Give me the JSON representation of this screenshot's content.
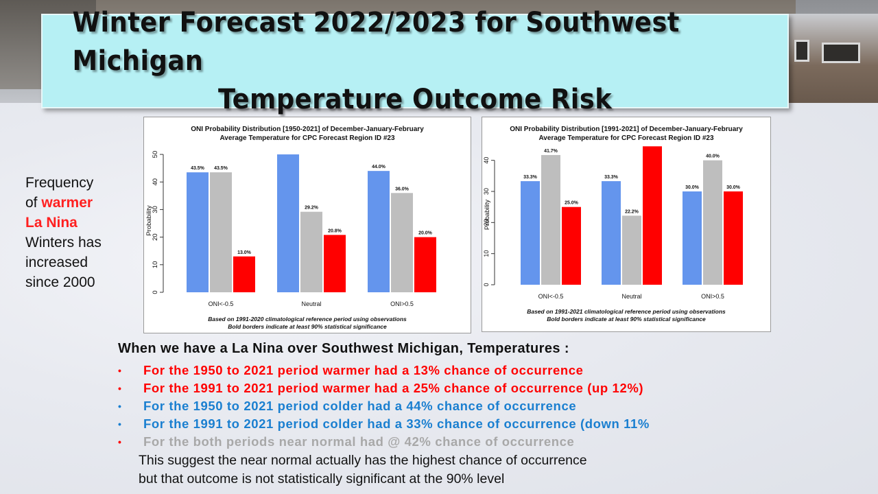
{
  "slide": {
    "title_line1": "Winter Forecast 2022/2023 for Southwest Michigan",
    "title_line2": "Temperature Outcome Risk"
  },
  "side_note": {
    "line1": "Frequency",
    "line2_prefix": "of",
    "highlight1": "warmer",
    "highlight2": "La Nina",
    "line3": "Winters has",
    "line4": "increased",
    "line5": "since 2000"
  },
  "summary": {
    "title": "When we have a La Nina over Southwest Michigan, Temperatures :",
    "bullets": [
      {
        "text": "For the 1950 to 2021 period warmer had a 13% chance of occurrence",
        "color": "red"
      },
      {
        "text": "For the 1991 to 2021 period warmer had a 25% chance of occurrence (up 12%)",
        "color": "red"
      },
      {
        "text": "For the 1950 to 2021 period colder had a 44% chance of occurrence",
        "color": "blue"
      },
      {
        "text": "For the 1991 to 2021 period colder had a 33% chance of occurrence (down 11%",
        "color": "blue"
      },
      {
        "text": "For the both periods near normal had @ 42% chance of occurrence",
        "color": "gray"
      }
    ],
    "conclusion_line1": "This suggest the near normal actually has the highest chance of occurrence",
    "conclusion_line2": "but that outcome is not statistically significant at the 90% level"
  },
  "colors": {
    "cold": "#6495ed",
    "neutral": "#bebebe",
    "warm": "#ff0000",
    "banner": "#b6f0f4"
  },
  "chart_data": [
    {
      "type": "bar",
      "title": "ONI Probability Distribution [1950-2021] of December-January-February",
      "subtitle": "Average Temperature  for CPC Forecast Region ID #23",
      "xlabel": "",
      "ylabel": "Probability",
      "ylim": [
        0,
        52
      ],
      "yticks": [
        0,
        10,
        20,
        30,
        40,
        50
      ],
      "categories": [
        "ONI<-0.5",
        "Neutral",
        "ONI>0.5"
      ],
      "series": [
        {
          "values": [
            43.5,
            50.0,
            44.0
          ],
          "color": "#6495ed"
        },
        {
          "values": [
            43.5,
            29.2,
            36.0
          ],
          "color": "#bebebe"
        },
        {
          "values": [
            13.0,
            20.8,
            20.0
          ],
          "color": "#ff0000"
        }
      ],
      "data_labels": [
        [
          "43.5%",
          "",
          "44.0%"
        ],
        [
          "43.5%",
          "29.2%",
          "36.0%"
        ],
        [
          "13.0%",
          "20.8%",
          "20.0%"
        ]
      ],
      "footnote1": "Based on 1991-2020 climatological reference period using observations",
      "footnote2": "Bold borders indicate at least 90% statistical significance"
    },
    {
      "type": "bar",
      "title": "ONI Probability Distribution [1991-2021] of December-January-February",
      "subtitle": "Average Temperature  for CPC Forecast Region ID #23",
      "xlabel": "",
      "ylabel": "Probability",
      "ylim": [
        0,
        45
      ],
      "yticks": [
        0,
        10,
        20,
        30,
        40
      ],
      "categories": [
        "ONI<-0.5",
        "Neutral",
        "ONI>0.5"
      ],
      "series": [
        {
          "values": [
            33.3,
            33.3,
            30.0
          ],
          "color": "#6495ed"
        },
        {
          "values": [
            41.7,
            22.2,
            40.0
          ],
          "color": "#bebebe"
        },
        {
          "values": [
            25.0,
            44.5,
            30.0
          ],
          "color": "#ff0000"
        }
      ],
      "data_labels": [
        [
          "33.3%",
          "33.3%",
          "30.0%"
        ],
        [
          "41.7%",
          "22.2%",
          "40.0%"
        ],
        [
          "25.0%",
          "",
          "30.0%"
        ]
      ],
      "footnote1": "Based on 1991-2021 climatological reference period using observations",
      "footnote2": "Bold borders indicate at least 90% statistical significance"
    }
  ]
}
